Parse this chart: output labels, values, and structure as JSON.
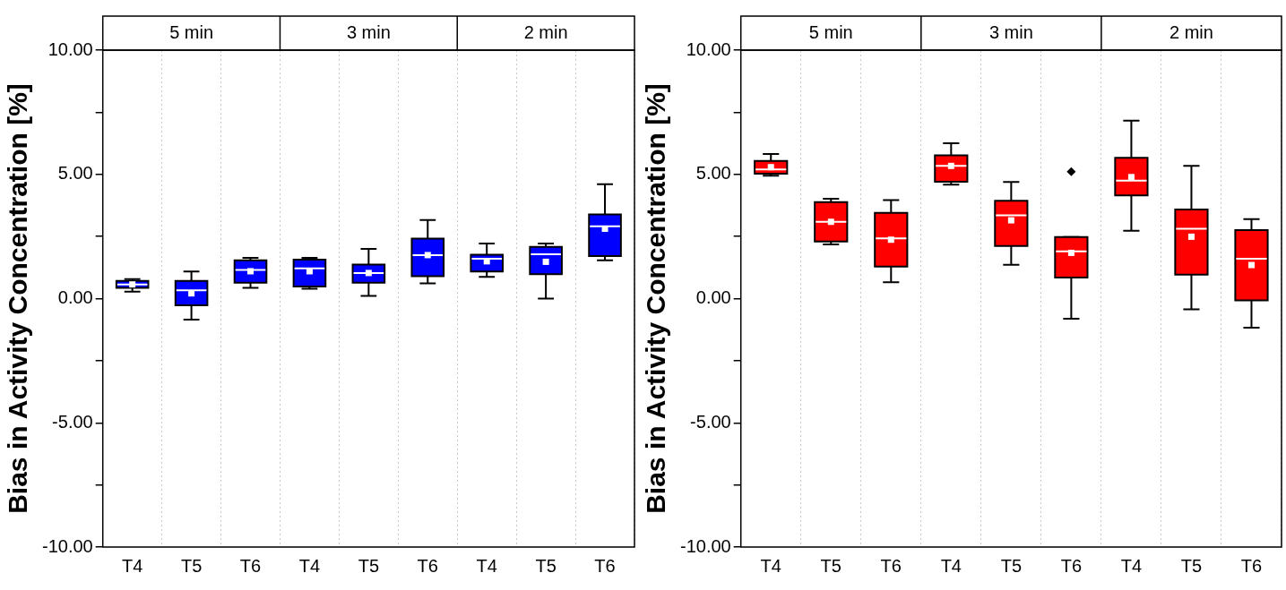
{
  "chart_data": [
    {
      "type": "box",
      "categories": [
        "T4",
        "T5",
        "T6",
        "T4",
        "T5",
        "T6",
        "T4",
        "T5",
        "T6"
      ],
      "annotations": [
        "5 min",
        "3 min",
        "2 min"
      ],
      "ylabel": "Bias in Activity Concentration [%]",
      "ylim": [
        -10,
        10
      ],
      "yticks": [
        {
          "value": -10,
          "label": "-10.00"
        },
        {
          "value": -7.5,
          "label": null
        },
        {
          "value": -5,
          "label": "-5.00"
        },
        {
          "value": -2.5,
          "label": null
        },
        {
          "value": 0,
          "label": "0.00"
        },
        {
          "value": 2.5,
          "label": null
        },
        {
          "value": 5,
          "label": "5.00"
        },
        {
          "value": 7.5,
          "label": null
        },
        {
          "value": 10,
          "label": "10.00"
        }
      ],
      "grid": "x",
      "series": [
        {
          "color": "#0000ff",
          "boxes": [
            {
              "low": 0.28,
              "q1": 0.43,
              "median": 0.57,
              "q3": 0.71,
              "high": 0.78,
              "mean": 0.57
            },
            {
              "low": -0.85,
              "q1": -0.27,
              "median": 0.33,
              "q3": 0.71,
              "high": 1.09,
              "mean": 0.21
            },
            {
              "low": 0.43,
              "q1": 0.64,
              "median": 1.15,
              "q3": 1.54,
              "high": 1.64,
              "mean": 1.1
            },
            {
              "low": 0.4,
              "q1": 0.49,
              "median": 1.22,
              "q3": 1.57,
              "high": 1.64,
              "mean": 1.1
            },
            {
              "low": 0.11,
              "q1": 0.64,
              "median": 1.03,
              "q3": 1.37,
              "high": 2.0,
              "mean": 1.03
            },
            {
              "low": 0.61,
              "q1": 0.9,
              "median": 1.75,
              "q3": 2.41,
              "high": 3.16,
              "mean": 1.75
            },
            {
              "low": 0.87,
              "q1": 1.09,
              "median": 1.6,
              "q3": 1.77,
              "high": 2.22,
              "mean": 1.5
            },
            {
              "low": 0.0,
              "q1": 0.98,
              "median": 1.78,
              "q3": 2.08,
              "high": 2.22,
              "mean": 1.48
            },
            {
              "low": 1.54,
              "q1": 1.71,
              "median": 2.91,
              "q3": 3.39,
              "high": 4.6,
              "mean": 2.81
            }
          ]
        }
      ]
    },
    {
      "type": "box",
      "categories": [
        "T4",
        "T5",
        "T6",
        "T4",
        "T5",
        "T6",
        "T4",
        "T5",
        "T6"
      ],
      "annotations": [
        "5 min",
        "3 min",
        "2 min"
      ],
      "ylabel": "Bias in Activity Concentration [%]",
      "ylim": [
        -10,
        10
      ],
      "yticks": [
        {
          "value": -10,
          "label": "-10.00"
        },
        {
          "value": -7.5,
          "label": null
        },
        {
          "value": -5,
          "label": "-5.00"
        },
        {
          "value": -2.5,
          "label": null
        },
        {
          "value": 0,
          "label": "0.00"
        },
        {
          "value": 2.5,
          "label": null
        },
        {
          "value": 5,
          "label": "5.00"
        },
        {
          "value": 7.5,
          "label": null
        },
        {
          "value": 10,
          "label": "10.00"
        }
      ],
      "grid": "x",
      "series": [
        {
          "color": "#ff0000",
          "boxes": [
            {
              "low": 4.95,
              "q1": 5.03,
              "median": 5.2,
              "q3": 5.54,
              "high": 5.82,
              "mean": 5.29
            },
            {
              "low": 2.18,
              "q1": 2.3,
              "median": 3.09,
              "q3": 3.88,
              "high": 4.02,
              "mean": 3.09
            },
            {
              "low": 0.66,
              "q1": 1.29,
              "median": 2.42,
              "q3": 3.45,
              "high": 3.96,
              "mean": 2.37
            },
            {
              "low": 4.59,
              "q1": 4.7,
              "median": 5.34,
              "q3": 5.77,
              "high": 6.25,
              "mean": 5.34
            },
            {
              "low": 1.36,
              "q1": 2.12,
              "median": 3.35,
              "q3": 3.94,
              "high": 4.69,
              "mean": 3.15
            },
            {
              "low": -0.81,
              "q1": 0.85,
              "median": 1.9,
              "q3": 2.48,
              "high": 2.48,
              "mean": 1.84,
              "outliers": [
                5.11
              ]
            },
            {
              "low": 2.73,
              "q1": 4.15,
              "median": 4.75,
              "q3": 5.67,
              "high": 7.16,
              "mean": 4.89
            },
            {
              "low": -0.43,
              "q1": 0.96,
              "median": 2.81,
              "q3": 3.59,
              "high": 5.34,
              "mean": 2.49
            },
            {
              "low": -1.17,
              "q1": -0.07,
              "median": 1.6,
              "q3": 2.76,
              "high": 3.2,
              "mean": 1.35
            }
          ]
        }
      ]
    }
  ]
}
